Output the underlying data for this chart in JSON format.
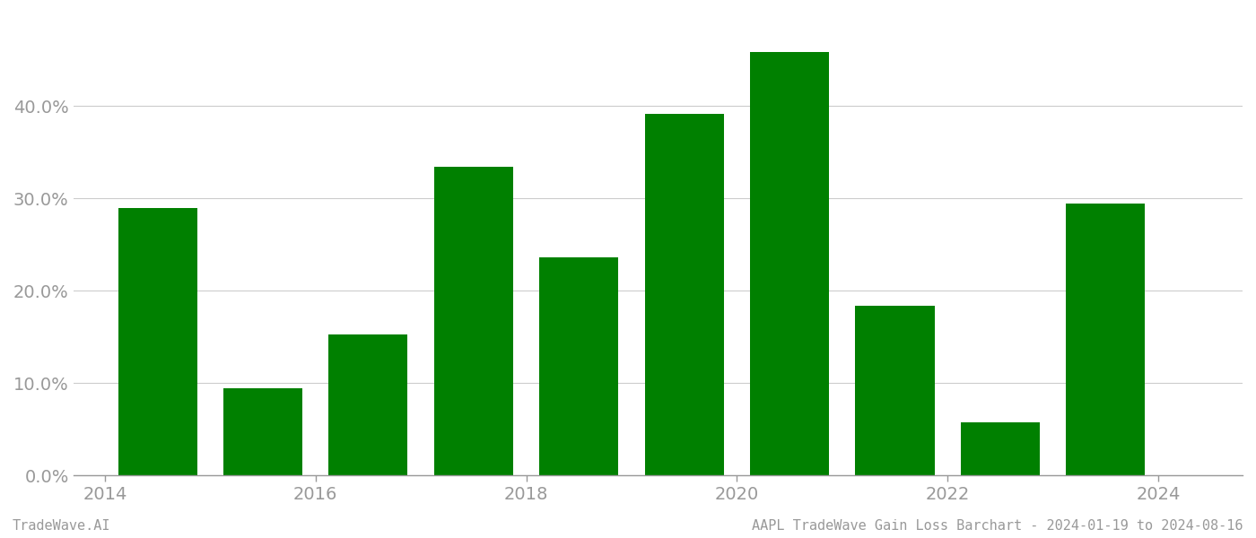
{
  "years": [
    2014,
    2015,
    2016,
    2017,
    2018,
    2019,
    2020,
    2021,
    2022,
    2023
  ],
  "values": [
    0.289,
    0.094,
    0.153,
    0.334,
    0.236,
    0.391,
    0.458,
    0.184,
    0.057,
    0.294
  ],
  "bar_color": "#008000",
  "background_color": "#ffffff",
  "ylim": [
    0,
    0.5
  ],
  "yticks": [
    0.0,
    0.1,
    0.2,
    0.3,
    0.4
  ],
  "xtick_positions": [
    2013.5,
    2015.5,
    2017.5,
    2019.5,
    2021.5,
    2023.5
  ],
  "xtick_labels": [
    "2014",
    "2016",
    "2018",
    "2020",
    "2022",
    "2024"
  ],
  "xlim": [
    2013.2,
    2024.3
  ],
  "grid_color": "#cccccc",
  "tick_color": "#999999",
  "footer_left": "TradeWave.AI",
  "footer_right": "AAPL TradeWave Gain Loss Barchart - 2024-01-19 to 2024-08-16",
  "footer_fontsize": 11,
  "bar_width": 0.75,
  "tick_labelsize": 14
}
